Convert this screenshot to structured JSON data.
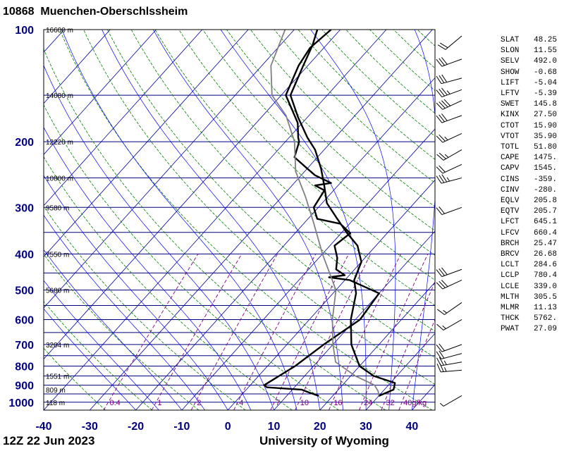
{
  "station": {
    "id": "10868",
    "name": "Muenchen-Oberschlssheim"
  },
  "footer": {
    "time": "12Z 22 Jun 2023",
    "credit": "University of Wyoming"
  },
  "chart_data": {
    "type": "line",
    "title": "10868 Muenchen-Oberschlssheim",
    "xlim": [
      -40,
      45
    ],
    "ylim": [
      1050,
      100
    ],
    "y_scale": "log",
    "skew": "skew-T",
    "x_ticks": [
      "-40",
      "-30",
      "-20",
      "-10",
      "0",
      "10",
      "20",
      "30",
      "40"
    ],
    "y_ticks": [
      "100",
      "200",
      "300",
      "400",
      "500",
      "600",
      "700",
      "800",
      "900",
      "1000"
    ],
    "height_labels": [
      {
        "p": 100,
        "label": "16600 m"
      },
      {
        "p": 150,
        "label": "14080 m"
      },
      {
        "p": 200,
        "label": "12220 m"
      },
      {
        "p": 250,
        "label": "10800 m"
      },
      {
        "p": 300,
        "label": "9580 m"
      },
      {
        "p": 400,
        "label": "7550 m"
      },
      {
        "p": 500,
        "label": "5680 m"
      },
      {
        "p": 700,
        "label": "3204 m"
      },
      {
        "p": 850,
        "label": "1551 m"
      },
      {
        "p": 925,
        "label": "809 m"
      },
      {
        "p": 1000,
        "label": "118 m"
      }
    ],
    "mixing_ratio_labels": [
      "0.4",
      "1",
      "2",
      "4",
      "7",
      "10",
      "16",
      "24",
      "32",
      "40g/kg"
    ],
    "series": [
      {
        "name": "temperature",
        "color": "#000000",
        "points": [
          [
            30,
            962
          ],
          [
            32,
            925
          ],
          [
            31,
            888
          ],
          [
            25,
            850
          ],
          [
            20,
            800
          ],
          [
            14,
            700
          ],
          [
            9,
            600
          ],
          [
            5,
            510
          ],
          [
            2,
            470
          ],
          [
            0,
            420
          ],
          [
            -4,
            380
          ],
          [
            -9,
            350
          ],
          [
            -14,
            320
          ],
          [
            -19,
            292
          ],
          [
            -23,
            262
          ],
          [
            -27,
            236
          ],
          [
            -32,
            210
          ],
          [
            -36,
            195
          ],
          [
            -42,
            172
          ],
          [
            -48,
            150
          ],
          [
            -51,
            125
          ],
          [
            -53,
            110
          ],
          [
            -55,
            100
          ]
        ]
      },
      {
        "name": "dewpoint",
        "color": "#000000",
        "points": [
          [
            17,
            962
          ],
          [
            14,
            940
          ],
          [
            12,
            925
          ],
          [
            4,
            912
          ],
          [
            3,
            900
          ],
          [
            6,
            800
          ],
          [
            8,
            700
          ],
          [
            11,
            600
          ],
          [
            10,
            510
          ],
          [
            4,
            483
          ],
          [
            1,
            470
          ],
          [
            -4,
            462
          ],
          [
            -1,
            456
          ],
          [
            -4,
            440
          ],
          [
            -6,
            410
          ],
          [
            -9,
            380
          ],
          [
            -8,
            352
          ],
          [
            -12,
            332
          ],
          [
            -18,
            322
          ],
          [
            -21,
            300
          ],
          [
            -22,
            270
          ],
          [
            -25,
            262
          ],
          [
            -22,
            258
          ],
          [
            -27,
            246
          ],
          [
            -30,
            236
          ],
          [
            -35,
            220
          ],
          [
            -37,
            200
          ],
          [
            -38,
            195
          ],
          [
            -41,
            178
          ],
          [
            -49,
            150
          ],
          [
            -52,
            125
          ],
          [
            -53,
            112
          ],
          [
            -52,
            100
          ]
        ]
      },
      {
        "name": "parcel",
        "color": "#808080",
        "points": [
          [
            30,
            962
          ],
          [
            29,
            935
          ],
          [
            27,
            900
          ],
          [
            21,
            850
          ],
          [
            14,
            780
          ],
          [
            10,
            700
          ],
          [
            5,
            600
          ],
          [
            0,
            500
          ],
          [
            -10,
            400
          ],
          [
            -18,
            330
          ],
          [
            -25,
            280
          ],
          [
            -32,
            240
          ],
          [
            -38,
            200
          ],
          [
            -45,
            170
          ],
          [
            -52,
            150
          ],
          [
            -58,
            125
          ],
          [
            -62,
            100
          ]
        ]
      }
    ],
    "wind_barbs": [
      {
        "p": 960,
        "dir": 240,
        "kt": 5
      },
      {
        "p": 820,
        "dir": 265,
        "kt": 25
      },
      {
        "p": 780,
        "dir": 260,
        "kt": 25
      },
      {
        "p": 740,
        "dir": 255,
        "kt": 20
      },
      {
        "p": 700,
        "dir": 250,
        "kt": 20
      },
      {
        "p": 600,
        "dir": 240,
        "kt": 15
      },
      {
        "p": 540,
        "dir": 235,
        "kt": 15
      },
      {
        "p": 470,
        "dir": 245,
        "kt": 30
      },
      {
        "p": 440,
        "dir": 250,
        "kt": 30
      },
      {
        "p": 300,
        "dir": 250,
        "kt": 20
      },
      {
        "p": 250,
        "dir": 255,
        "kt": 35
      },
      {
        "p": 230,
        "dir": 245,
        "kt": 20
      },
      {
        "p": 210,
        "dir": 240,
        "kt": 25
      },
      {
        "p": 190,
        "dir": 245,
        "kt": 25
      },
      {
        "p": 170,
        "dir": 250,
        "kt": 30
      },
      {
        "p": 155,
        "dir": 245,
        "kt": 40
      },
      {
        "p": 145,
        "dir": 250,
        "kt": 35
      },
      {
        "p": 135,
        "dir": 255,
        "kt": 30
      },
      {
        "p": 120,
        "dir": 250,
        "kt": 30
      },
      {
        "p": 104,
        "dir": 230,
        "kt": 20
      }
    ]
  },
  "indices": [
    {
      "k": "SLAT",
      "v": "48.25"
    },
    {
      "k": "SLON",
      "v": "11.55"
    },
    {
      "k": "SELV",
      "v": "492.0"
    },
    {
      "k": "SHOW",
      "v": "-0.68"
    },
    {
      "k": "LIFT",
      "v": "-5.04"
    },
    {
      "k": "LFTV",
      "v": "-5.39"
    },
    {
      "k": "SWET",
      "v": "145.8"
    },
    {
      "k": "KINX",
      "v": "27.50"
    },
    {
      "k": "CTOT",
      "v": "15.90"
    },
    {
      "k": "VTOT",
      "v": "35.90"
    },
    {
      "k": "TOTL",
      "v": "51.80"
    },
    {
      "k": "CAPE",
      "v": "1475."
    },
    {
      "k": "CAPV",
      "v": "1545."
    },
    {
      "k": "CINS",
      "v": "-359."
    },
    {
      "k": "CINV",
      "v": "-280."
    },
    {
      "k": "EQLV",
      "v": "205.8"
    },
    {
      "k": "EQTV",
      "v": "205.7"
    },
    {
      "k": "LFCT",
      "v": "645.1"
    },
    {
      "k": "LFCV",
      "v": "660.4"
    },
    {
      "k": "BRCH",
      "v": "25.47"
    },
    {
      "k": "BRCV",
      "v": "26.68"
    },
    {
      "k": "LCLT",
      "v": "284.6"
    },
    {
      "k": "LCLP",
      "v": "780.4"
    },
    {
      "k": "LCLE",
      "v": "339.0"
    },
    {
      "k": "MLTH",
      "v": "305.5"
    },
    {
      "k": "MLMR",
      "v": "11.13"
    },
    {
      "k": "THCK",
      "v": "5762."
    },
    {
      "k": "PWAT",
      "v": "27.09"
    }
  ],
  "colors": {
    "isobar": "#000080",
    "isotherm": "#0000a0",
    "dry_adiabat": "#008000",
    "moist_adiabat": "#0000ff",
    "mixing_ratio": "#800080",
    "label_blue": "#000080"
  }
}
